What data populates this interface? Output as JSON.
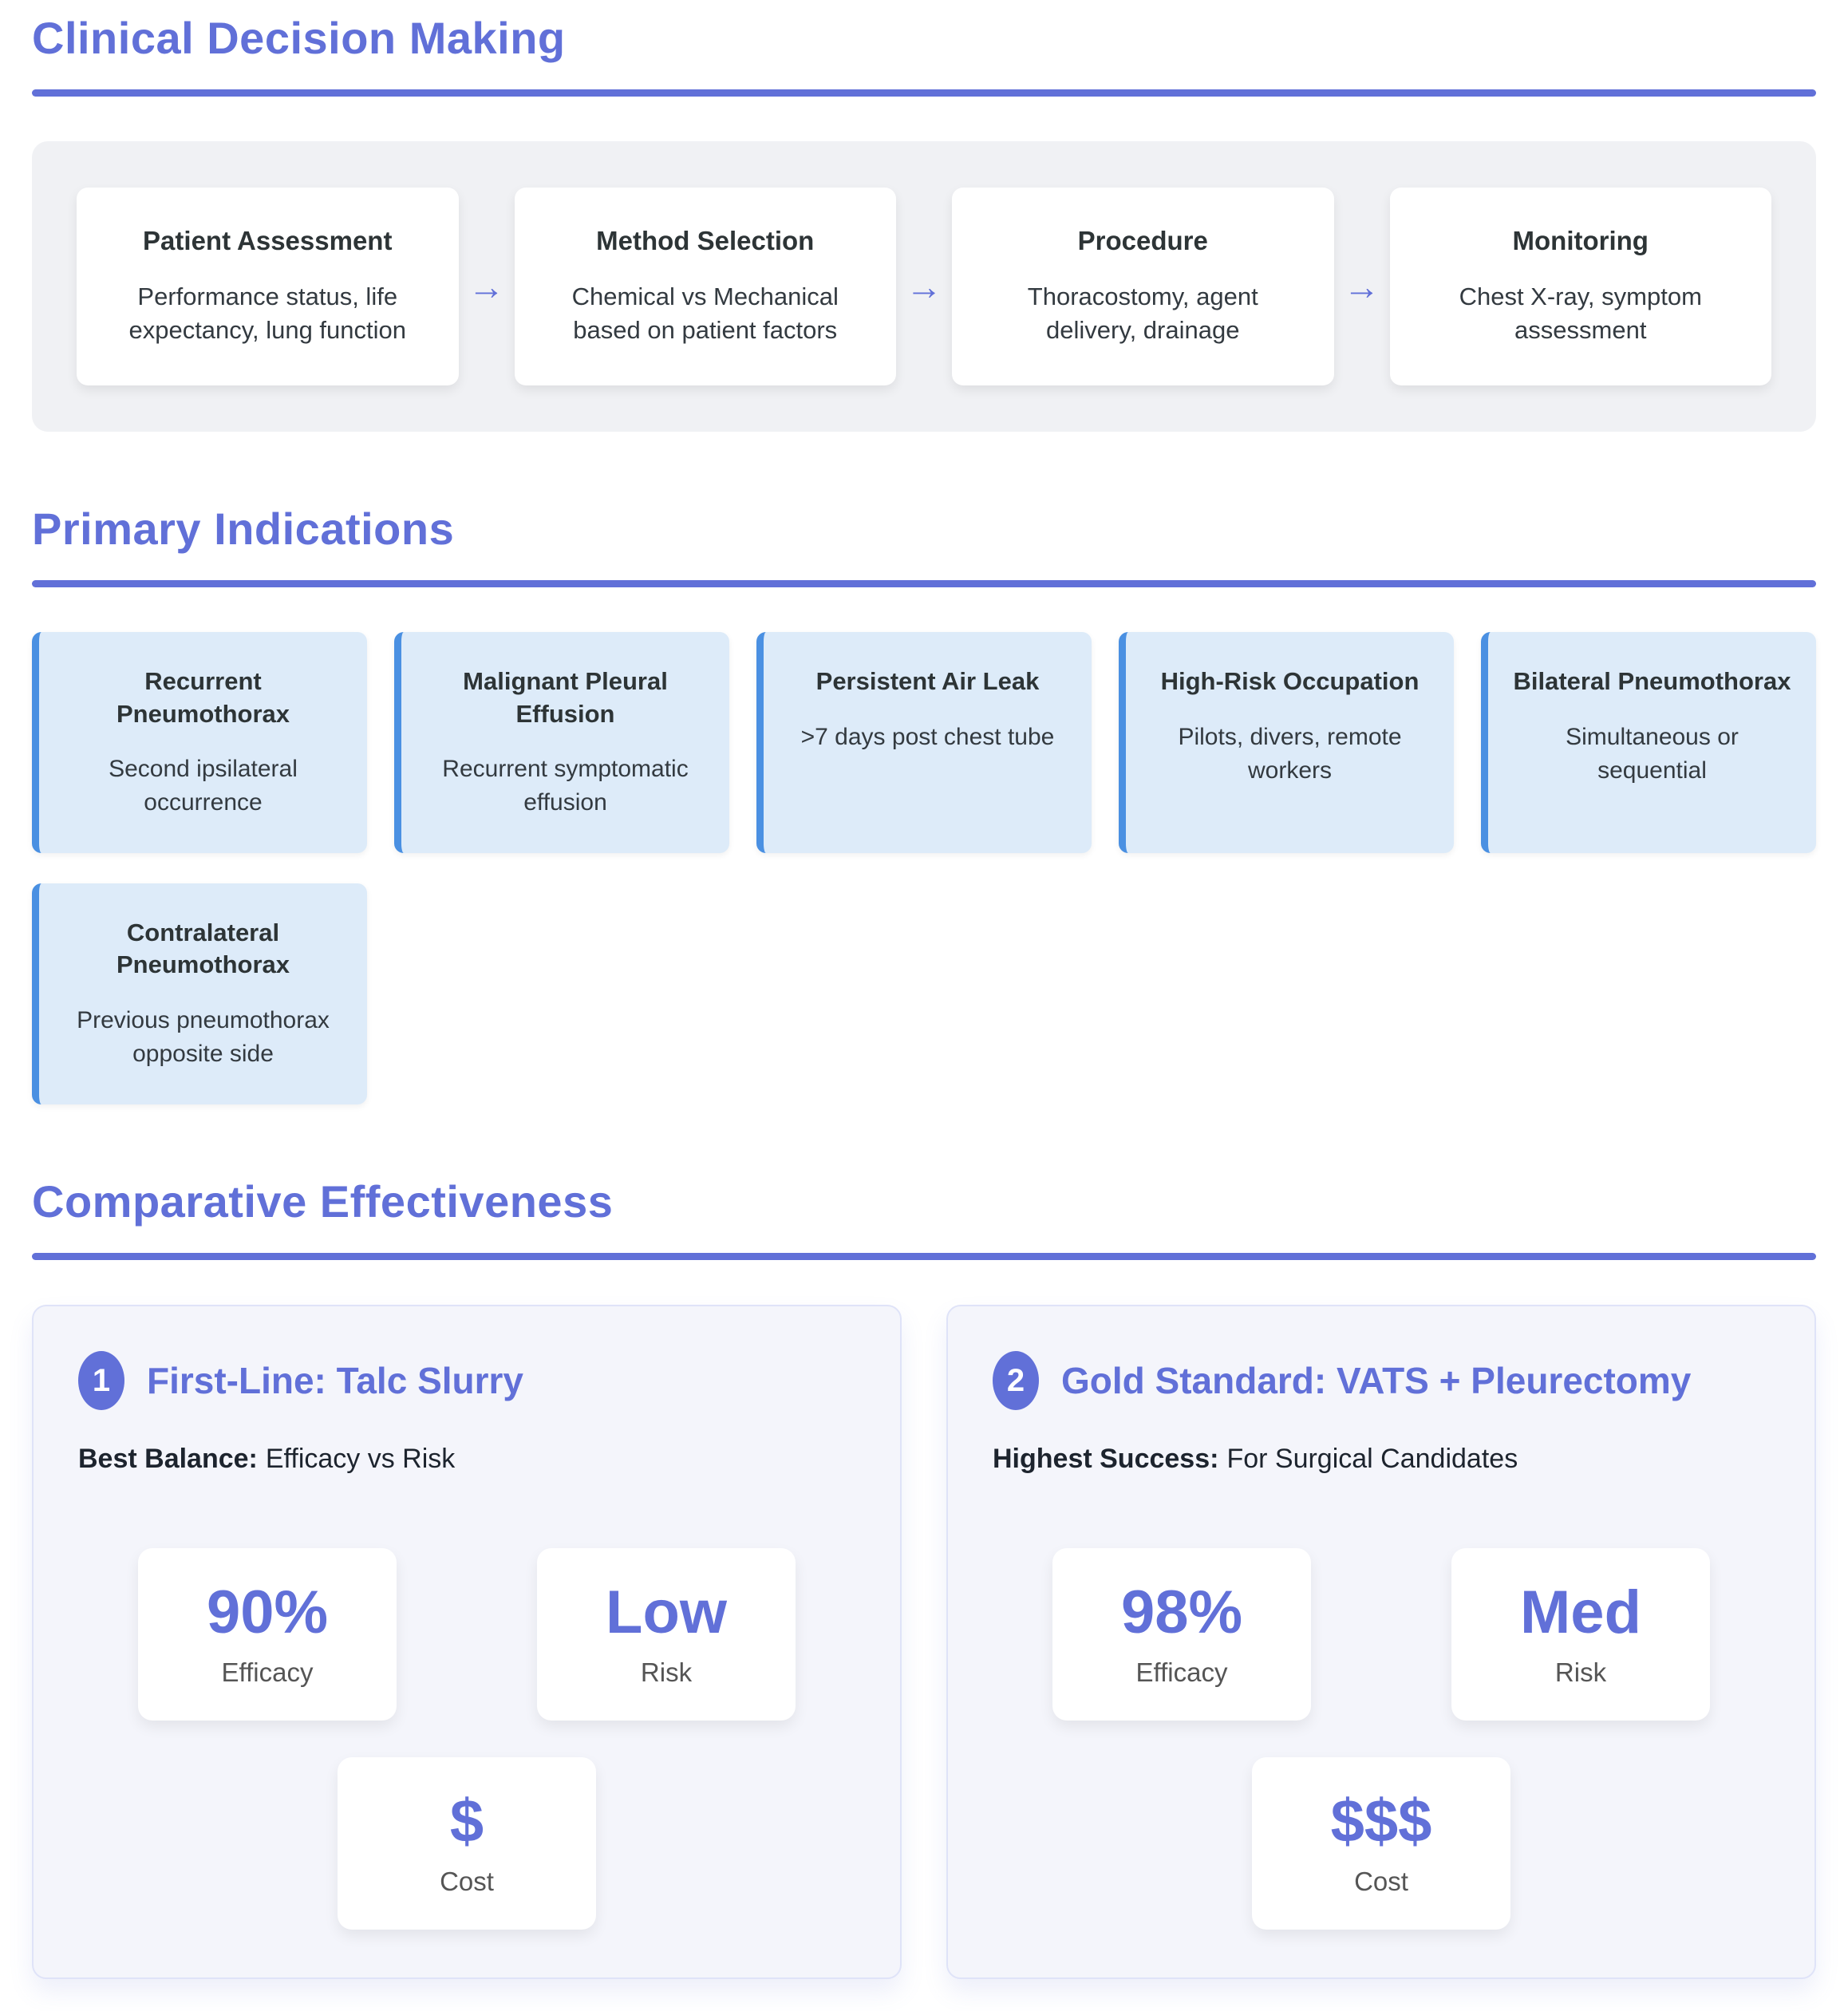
{
  "colors": {
    "accent": "#6170d8",
    "indication_border": "#4a90e2",
    "indication_bg": "#ddebf9",
    "panel_bg": "#f4f5fb",
    "panel_border": "#dfe3f8",
    "flow_bg": "#f0f1f4"
  },
  "clinical_decision_making": {
    "title": "Clinical Decision Making",
    "arrow": "→",
    "steps": [
      {
        "title": "Patient Assessment",
        "desc": "Performance status, life expectancy, lung function"
      },
      {
        "title": "Method Selection",
        "desc": "Chemical vs Mechanical based on patient factors"
      },
      {
        "title": "Procedure",
        "desc": "Thoracostomy, agent delivery, drainage"
      },
      {
        "title": "Monitoring",
        "desc": "Chest X-ray, symptom assessment"
      }
    ]
  },
  "primary_indications": {
    "title": "Primary Indications",
    "cards": [
      {
        "title": "Recurrent Pneumothorax",
        "desc": "Second ipsilateral occurrence"
      },
      {
        "title": "Malignant Pleural Effusion",
        "desc": "Recurrent symptomatic effusion"
      },
      {
        "title": "Persistent Air Leak",
        "desc": ">7 days post chest tube"
      },
      {
        "title": "High-Risk Occupation",
        "desc": "Pilots, divers, remote workers"
      },
      {
        "title": "Bilateral Pneumothorax",
        "desc": "Simultaneous or sequential"
      },
      {
        "title": "Contralateral Pneumothorax",
        "desc": "Previous pneumothorax opposite side"
      }
    ]
  },
  "comparative_effectiveness": {
    "title": "Comparative Effectiveness",
    "options": [
      {
        "number": "1",
        "title": "First-Line: Talc Slurry",
        "highlight_label": "Best Balance:",
        "highlight_text": "Efficacy vs Risk",
        "stats": [
          {
            "value": "90%",
            "label": "Efficacy"
          },
          {
            "value": "Low",
            "label": "Risk"
          },
          {
            "value": "$",
            "label": "Cost"
          }
        ]
      },
      {
        "number": "2",
        "title": "Gold Standard: VATS + Pleurectomy",
        "highlight_label": "Highest Success:",
        "highlight_text": "For Surgical Candidates",
        "stats": [
          {
            "value": "98%",
            "label": "Efficacy"
          },
          {
            "value": "Med",
            "label": "Risk"
          },
          {
            "value": "$$$",
            "label": "Cost"
          }
        ]
      }
    ]
  }
}
